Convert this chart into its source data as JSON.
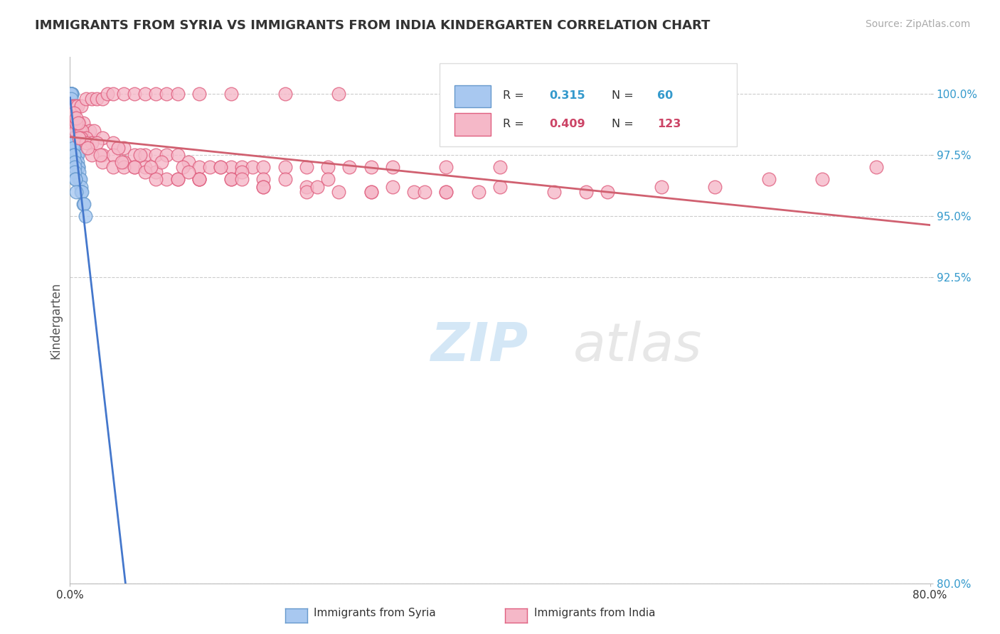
{
  "title": "IMMIGRANTS FROM SYRIA VS IMMIGRANTS FROM INDIA KINDERGARTEN CORRELATION CHART",
  "source": "Source: ZipAtlas.com",
  "ylabel": "Kindergarten",
  "xlim": [
    0.0,
    80.0
  ],
  "ylim": [
    80.0,
    101.5
  ],
  "legend_syria_R": "0.315",
  "legend_syria_N": "60",
  "legend_india_R": "0.409",
  "legend_india_N": "123",
  "syria_color": "#a8c8f0",
  "syria_edge": "#6699cc",
  "india_color": "#f5b8c8",
  "india_edge": "#e06080",
  "syria_line_color": "#4477cc",
  "india_line_color": "#d06070",
  "background_color": "#ffffff",
  "syria_x": [
    0.05,
    0.08,
    0.1,
    0.12,
    0.15,
    0.18,
    0.2,
    0.22,
    0.25,
    0.28,
    0.3,
    0.32,
    0.35,
    0.38,
    0.4,
    0.42,
    0.45,
    0.48,
    0.5,
    0.52,
    0.55,
    0.58,
    0.6,
    0.62,
    0.65,
    0.68,
    0.7,
    0.72,
    0.75,
    0.78,
    0.8,
    0.85,
    0.9,
    0.95,
    1.0,
    1.05,
    1.1,
    1.2,
    1.3,
    1.4,
    0.06,
    0.09,
    0.11,
    0.13,
    0.16,
    0.19,
    0.21,
    0.24,
    0.26,
    0.29,
    0.31,
    0.33,
    0.36,
    0.39,
    0.41,
    0.44,
    0.46,
    0.49,
    0.51,
    0.54
  ],
  "syria_y": [
    100.0,
    100.0,
    100.0,
    100.0,
    100.0,
    100.0,
    100.0,
    99.5,
    99.5,
    99.5,
    99.2,
    99.0,
    98.8,
    98.8,
    98.5,
    98.5,
    98.2,
    98.0,
    98.0,
    97.8,
    97.5,
    97.5,
    97.5,
    97.5,
    97.5,
    97.5,
    97.2,
    97.0,
    97.0,
    97.0,
    96.8,
    96.5,
    96.5,
    96.5,
    96.2,
    96.0,
    96.0,
    95.5,
    95.5,
    95.0,
    100.0,
    100.0,
    99.8,
    99.5,
    99.2,
    99.0,
    98.8,
    98.5,
    98.5,
    98.2,
    98.0,
    97.8,
    97.5,
    97.5,
    97.2,
    97.0,
    96.8,
    96.5,
    96.5,
    96.0
  ],
  "india_x": [
    0.3,
    0.5,
    0.7,
    1.0,
    1.5,
    2.0,
    2.5,
    3.0,
    3.5,
    4.0,
    5.0,
    6.0,
    7.0,
    8.0,
    9.0,
    10.0,
    12.0,
    15.0,
    20.0,
    25.0,
    0.4,
    0.6,
    0.8,
    1.2,
    1.8,
    2.2,
    3.0,
    4.0,
    5.0,
    6.0,
    7.0,
    8.0,
    9.0,
    10.0,
    11.0,
    12.0,
    13.0,
    14.0,
    15.0,
    16.0,
    17.0,
    18.0,
    20.0,
    22.0,
    24.0,
    26.0,
    28.0,
    30.0,
    35.0,
    40.0,
    0.5,
    0.9,
    1.1,
    1.5,
    2.0,
    3.0,
    4.0,
    5.0,
    6.0,
    7.0,
    8.0,
    9.0,
    10.0,
    12.0,
    15.0,
    18.0,
    22.0,
    28.0,
    35.0,
    45.0,
    55.0,
    65.0,
    75.0,
    0.4,
    0.6,
    1.0,
    1.5,
    2.0,
    3.0,
    4.0,
    5.0,
    6.0,
    7.0,
    8.0,
    10.0,
    12.0,
    15.0,
    18.0,
    22.0,
    28.0,
    35.0,
    12.0,
    18.0,
    25.0,
    32.0,
    40.0,
    2.5,
    4.5,
    6.5,
    8.5,
    10.5,
    14.0,
    16.0,
    20.0,
    24.0,
    30.0,
    38.0,
    50.0,
    60.0,
    70.0,
    0.8,
    1.6,
    2.8,
    4.8,
    7.5,
    11.0,
    16.0,
    23.0,
    33.0,
    48.0,
    0.35,
    0.55,
    0.75
  ],
  "india_y": [
    99.5,
    99.5,
    99.5,
    99.5,
    99.8,
    99.8,
    99.8,
    99.8,
    100.0,
    100.0,
    100.0,
    100.0,
    100.0,
    100.0,
    100.0,
    100.0,
    100.0,
    100.0,
    100.0,
    100.0,
    98.8,
    98.8,
    98.8,
    98.8,
    98.5,
    98.5,
    98.2,
    98.0,
    97.8,
    97.5,
    97.5,
    97.5,
    97.5,
    97.5,
    97.2,
    97.0,
    97.0,
    97.0,
    97.0,
    97.0,
    97.0,
    97.0,
    97.0,
    97.0,
    97.0,
    97.0,
    97.0,
    97.0,
    97.0,
    97.0,
    98.5,
    98.5,
    98.5,
    98.2,
    98.0,
    97.5,
    97.5,
    97.2,
    97.0,
    97.0,
    96.8,
    96.5,
    96.5,
    96.5,
    96.5,
    96.5,
    96.2,
    96.0,
    96.0,
    96.0,
    96.2,
    96.5,
    97.0,
    99.0,
    98.8,
    98.2,
    98.0,
    97.5,
    97.2,
    97.0,
    97.0,
    97.0,
    96.8,
    96.5,
    96.5,
    96.5,
    96.5,
    96.2,
    96.0,
    96.0,
    96.0,
    96.5,
    96.2,
    96.0,
    96.0,
    96.2,
    98.0,
    97.8,
    97.5,
    97.2,
    97.0,
    97.0,
    96.8,
    96.5,
    96.5,
    96.2,
    96.0,
    96.0,
    96.2,
    96.5,
    98.2,
    97.8,
    97.5,
    97.2,
    97.0,
    96.8,
    96.5,
    96.2,
    96.0,
    96.0,
    99.2,
    99.0,
    98.8
  ],
  "dpi": 100,
  "fig_width": 14.06,
  "fig_height": 8.92
}
